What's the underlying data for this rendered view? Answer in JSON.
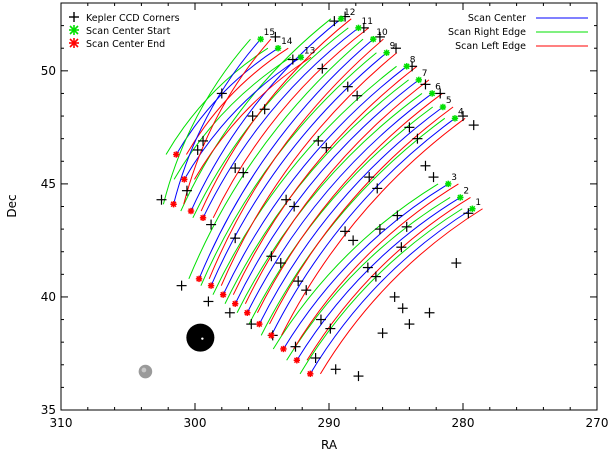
{
  "chart_data": {
    "type": "line",
    "title": "",
    "xlabel": "RA",
    "ylabel": "Dec",
    "xlim": [
      310,
      270
    ],
    "ylim": [
      35,
      53
    ],
    "x_ticks": [
      310,
      300,
      290,
      280,
      270
    ],
    "x_tick_labels": [
      "310",
      "300",
      "290",
      "280",
      "270"
    ],
    "y_ticks": [
      35,
      40,
      45,
      50
    ],
    "y_tick_labels": [
      "35",
      "40",
      "45",
      "50"
    ],
    "grid": false,
    "legend_left": {
      "placement": "top-left",
      "entries": [
        {
          "label": "Kepler CCD Corners",
          "marker": "plus",
          "color": "#000000"
        },
        {
          "label": "Scan Center Start",
          "marker": "asterisk",
          "color": "#00e000"
        },
        {
          "label": "Scan Center End",
          "marker": "asterisk",
          "color": "#ff0000"
        }
      ]
    },
    "legend_right": {
      "placement": "top-right",
      "entries": [
        {
          "label": "Scan Center",
          "line": "#0000ff"
        },
        {
          "label": "Scan Right Edge",
          "line": "#00e000"
        },
        {
          "label": "Scan Left Edge",
          "line": "#ff0000"
        }
      ]
    },
    "colors": {
      "center": "#0000ff",
      "right": "#00e000",
      "left": "#ff0000",
      "corner": "#000000"
    },
    "scan_offset_deg": 0.9,
    "scans": [
      {
        "id": "1",
        "start": [
          279.3,
          43.9
        ],
        "end": [
          291.4,
          36.6
        ]
      },
      {
        "id": "2",
        "start": [
          280.2,
          44.4
        ],
        "end": [
          292.4,
          37.2
        ]
      },
      {
        "id": "3",
        "start": [
          281.1,
          45.0
        ],
        "end": [
          293.4,
          37.7
        ]
      },
      {
        "id": "4",
        "start": [
          280.6,
          47.9
        ],
        "end": [
          294.3,
          38.3
        ]
      },
      {
        "id": "5",
        "start": [
          281.5,
          48.4
        ],
        "end": [
          295.2,
          38.8
        ]
      },
      {
        "id": "6",
        "start": [
          282.3,
          49.0
        ],
        "end": [
          296.1,
          39.3
        ]
      },
      {
        "id": "7",
        "start": [
          283.3,
          49.6
        ],
        "end": [
          297.0,
          39.7
        ]
      },
      {
        "id": "8",
        "start": [
          284.2,
          50.2
        ],
        "end": [
          297.9,
          40.1
        ]
      },
      {
        "id": "9",
        "start": [
          285.7,
          50.8
        ],
        "end": [
          298.8,
          40.5
        ]
      },
      {
        "id": "10",
        "start": [
          286.7,
          51.4
        ],
        "end": [
          299.7,
          40.8
        ]
      },
      {
        "id": "11",
        "start": [
          287.8,
          51.9
        ],
        "end": [
          299.4,
          43.5
        ]
      },
      {
        "id": "12",
        "start": [
          289.1,
          52.3
        ],
        "end": [
          300.3,
          43.8
        ]
      },
      {
        "id": "13",
        "start": [
          292.1,
          50.6
        ],
        "end": [
          300.8,
          45.2
        ]
      },
      {
        "id": "14",
        "start": [
          293.8,
          51.0
        ],
        "end": [
          301.4,
          46.3
        ]
      },
      {
        "id": "15",
        "start": [
          295.1,
          51.4
        ],
        "end": [
          301.6,
          44.1
        ]
      }
    ],
    "ccd_corners": [
      [
        302.5,
        44.3
      ],
      [
        300.6,
        44.7
      ],
      [
        298.8,
        43.2
      ],
      [
        297.0,
        42.6
      ],
      [
        301.0,
        40.5
      ],
      [
        299.0,
        39.8
      ],
      [
        297.4,
        39.3
      ],
      [
        295.8,
        38.8
      ],
      [
        294.2,
        38.3
      ],
      [
        292.5,
        37.8
      ],
      [
        291.0,
        37.3
      ],
      [
        289.5,
        36.8
      ],
      [
        287.8,
        36.5
      ],
      [
        286.0,
        38.4
      ],
      [
        284.0,
        38.8
      ],
      [
        282.5,
        39.3
      ],
      [
        280.5,
        41.5
      ],
      [
        279.6,
        43.7
      ],
      [
        279.2,
        47.6
      ],
      [
        280.0,
        48.0
      ],
      [
        281.7,
        49.0
      ],
      [
        282.8,
        49.4
      ],
      [
        283.8,
        50.2
      ],
      [
        285.0,
        51.0
      ],
      [
        286.2,
        51.5
      ],
      [
        287.4,
        51.9
      ],
      [
        288.8,
        52.4
      ],
      [
        289.6,
        52.2
      ],
      [
        294.0,
        51.5
      ],
      [
        292.7,
        50.5
      ],
      [
        290.5,
        50.1
      ],
      [
        298.0,
        49.0
      ],
      [
        299.4,
        46.9
      ],
      [
        299.8,
        46.5
      ],
      [
        297.0,
        45.7
      ],
      [
        296.4,
        45.5
      ],
      [
        295.7,
        48.0
      ],
      [
        294.8,
        48.3
      ],
      [
        293.2,
        44.3
      ],
      [
        292.6,
        44.0
      ],
      [
        290.8,
        46.9
      ],
      [
        290.2,
        46.6
      ],
      [
        288.6,
        49.3
      ],
      [
        287.9,
        48.9
      ],
      [
        287.0,
        45.3
      ],
      [
        286.4,
        44.8
      ],
      [
        284.0,
        47.5
      ],
      [
        283.4,
        47.0
      ],
      [
        282.8,
        45.8
      ],
      [
        282.2,
        45.3
      ],
      [
        284.9,
        43.6
      ],
      [
        284.2,
        43.1
      ],
      [
        288.8,
        42.9
      ],
      [
        288.2,
        42.5
      ],
      [
        287.1,
        41.3
      ],
      [
        286.5,
        40.9
      ],
      [
        285.1,
        40.0
      ],
      [
        284.5,
        39.5
      ],
      [
        294.3,
        41.8
      ],
      [
        293.6,
        41.5
      ],
      [
        292.3,
        40.7
      ],
      [
        291.7,
        40.3
      ],
      [
        290.6,
        39.0
      ],
      [
        289.9,
        38.6
      ],
      [
        286.2,
        43.0
      ],
      [
        284.6,
        42.2
      ]
    ],
    "annotations": [
      {
        "type": "disk",
        "label": "",
        "x": 299.6,
        "y": 38.2,
        "r_deg": 0.62,
        "color": "#000000"
      },
      {
        "type": "disk",
        "label": "",
        "x": 303.7,
        "y": 36.7,
        "r_deg": 0.3,
        "color": "#9a9a9a"
      }
    ]
  }
}
